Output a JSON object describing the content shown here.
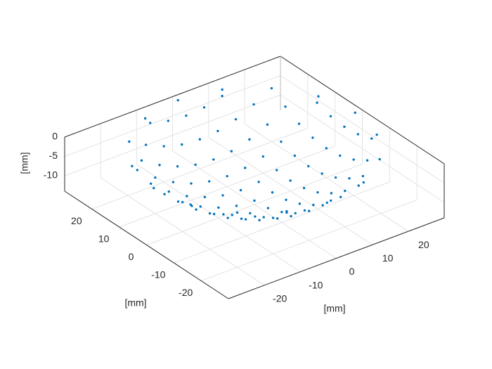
{
  "chart_data": {
    "type": "scatter3",
    "xlabel": "[mm]",
    "ylabel": "[mm]",
    "zlabel": "[mm]",
    "xlim": [
      -30,
      30
    ],
    "ylim": [
      -30,
      30
    ],
    "zlim": [
      -14,
      0
    ],
    "xticks": [
      -20,
      -10,
      0,
      10,
      20
    ],
    "yticks": [
      -20,
      -10,
      0,
      10,
      20
    ],
    "zticks": [
      -10,
      -5,
      0
    ],
    "grid": true,
    "series": [
      {
        "color": "#0072BD",
        "x": [
          -10,
          -5,
          0,
          5,
          10,
          -15,
          -10,
          -5,
          0,
          5,
          10,
          15,
          -20,
          -15,
          -10,
          -5,
          0,
          5,
          10,
          15,
          20,
          -25,
          -20,
          -15,
          -10,
          -5,
          0,
          5,
          10,
          15,
          20,
          25,
          -25,
          -20,
          -15,
          -10,
          -5,
          0,
          5,
          10,
          15,
          20,
          25,
          -25,
          -20,
          -15,
          -10,
          -5,
          0,
          5,
          10,
          15,
          20,
          25,
          -25,
          -20,
          -15,
          -10,
          -5,
          0,
          5,
          10,
          15,
          20,
          25,
          -25,
          -20,
          -15,
          -10,
          -5,
          0,
          5,
          10,
          15,
          20,
          25,
          -20,
          -15,
          -10,
          -5,
          0,
          5,
          10,
          15,
          20,
          -15,
          -10,
          -5,
          0,
          5,
          10,
          15,
          -10,
          -5,
          0,
          5,
          10,
          28,
          25.9,
          19.8,
          10.7,
          0,
          -10.7,
          -19.8,
          -25.9,
          -28,
          -25.9,
          -19.8,
          -10.7,
          0,
          10.7,
          19.8,
          25.9
        ],
        "y": [
          -25,
          -25,
          -25,
          -25,
          -25,
          -20,
          -20,
          -20,
          -20,
          -20,
          -20,
          -20,
          -15,
          -15,
          -15,
          -15,
          -15,
          -15,
          -15,
          -15,
          -15,
          -10,
          -10,
          -10,
          -10,
          -10,
          -10,
          -10,
          -10,
          -10,
          -10,
          -10,
          -5,
          -5,
          -5,
          -5,
          -5,
          -5,
          -5,
          -5,
          -5,
          -5,
          -5,
          0,
          0,
          0,
          0,
          0,
          0,
          0,
          0,
          0,
          0,
          0,
          5,
          5,
          5,
          5,
          5,
          5,
          5,
          5,
          5,
          5,
          5,
          10,
          10,
          10,
          10,
          10,
          10,
          10,
          10,
          10,
          10,
          10,
          15,
          15,
          15,
          15,
          15,
          15,
          15,
          15,
          15,
          20,
          20,
          20,
          20,
          20,
          20,
          20,
          25,
          25,
          25,
          25,
          25,
          0,
          10.7,
          19.8,
          25.9,
          28,
          25.9,
          19.8,
          10.7,
          0,
          -10.7,
          -19.8,
          -25.9,
          -28,
          -25.9,
          -19.8,
          -10.7
        ],
        "z": [
          -1.0,
          -2.2,
          -2.6,
          -2.2,
          -1.0,
          -2.6,
          -4.7,
          -6.0,
          -6.4,
          -6.0,
          -4.7,
          -2.6,
          -2.6,
          -5.5,
          -7.6,
          -8.9,
          -9.3,
          -8.9,
          -7.6,
          -5.5,
          -2.6,
          -1.0,
          -4.7,
          -7.6,
          -9.7,
          -10.9,
          -11.3,
          -10.9,
          -9.7,
          -7.6,
          -4.7,
          -1.0,
          -2.2,
          -6.0,
          -8.9,
          -10.9,
          -12.2,
          -12.6,
          -12.2,
          -10.9,
          -8.9,
          -6.0,
          -2.2,
          -2.6,
          -6.4,
          -9.3,
          -11.3,
          -12.6,
          -13,
          -12.6,
          -11.3,
          -9.3,
          -6.4,
          -2.6,
          -2.2,
          -6.0,
          -8.9,
          -10.9,
          -12.2,
          -12.6,
          -12.2,
          -10.9,
          -8.9,
          -6.0,
          -2.2,
          -1.0,
          -4.7,
          -7.6,
          -9.7,
          -10.9,
          -11.3,
          -10.9,
          -9.7,
          -7.6,
          -4.7,
          -1.0,
          -2.6,
          -5.5,
          -7.6,
          -8.9,
          -9.3,
          -8.9,
          -7.6,
          -5.5,
          -2.6,
          -2.6,
          -4.7,
          -6.0,
          -6.4,
          -6.0,
          -4.7,
          -2.6,
          -1.0,
          -2.2,
          -2.6,
          -2.2,
          -1.0,
          0,
          0,
          0,
          0,
          0,
          0,
          0,
          0,
          0,
          0,
          0,
          0,
          0,
          0,
          0,
          0
        ]
      }
    ]
  }
}
